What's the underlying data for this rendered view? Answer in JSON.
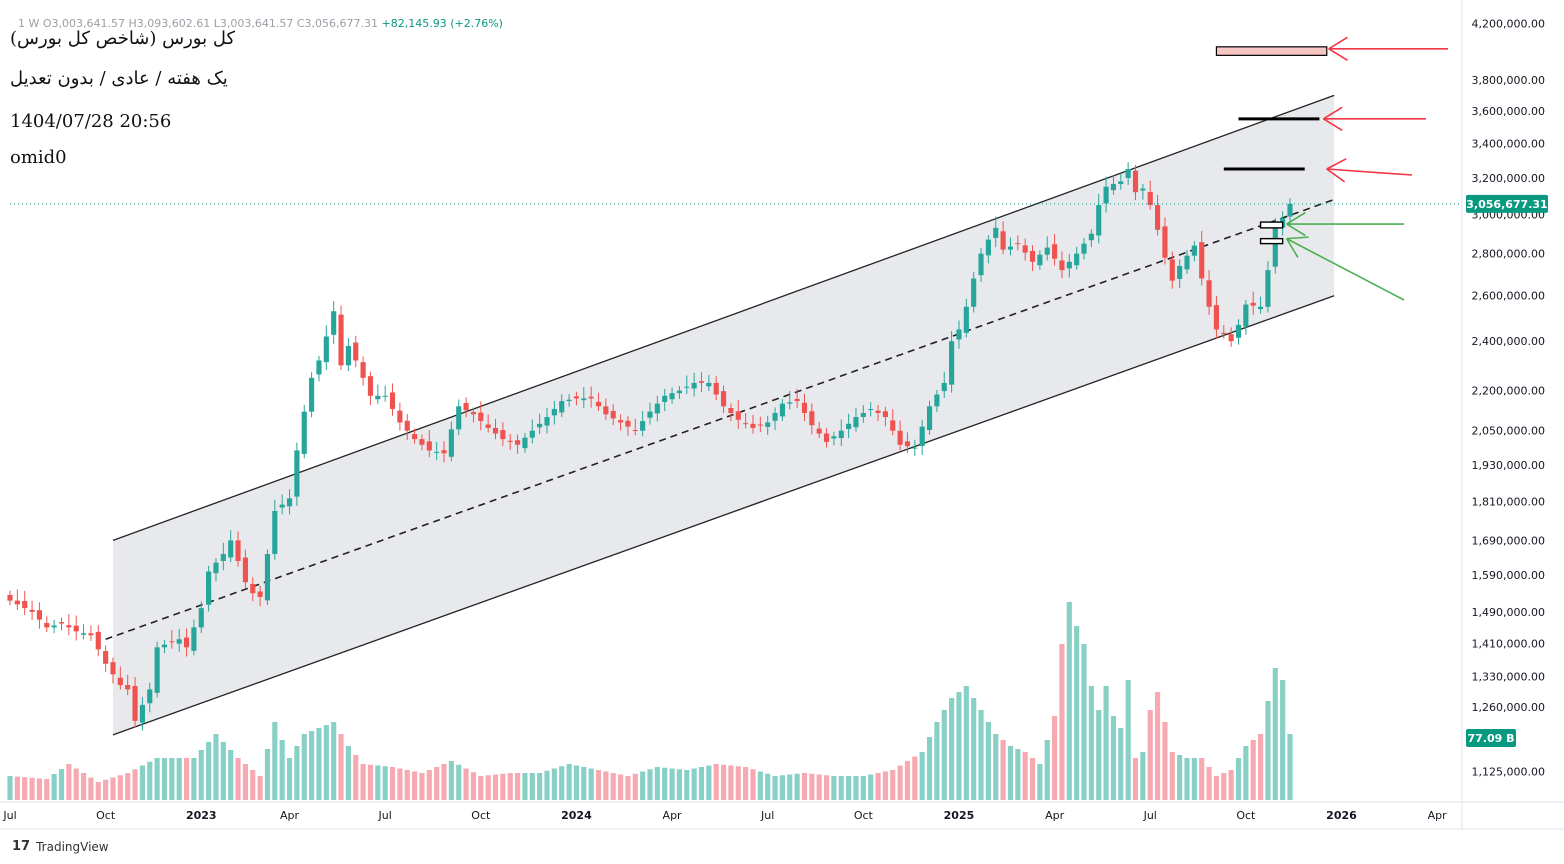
{
  "header": {
    "ohlc_text": "1  W  O3,003,641.57  H3,093,602.61  L3,003,641.57  C3,056,677.31",
    "change_text": "+82,145.93 (+2.76%)",
    "title": "کل بورس (شاخص کل بورس)",
    "subtitle": "یک هفته / عادی / بدون تعدیل",
    "datetime": "1404/07/28 20:56",
    "author": "omid0"
  },
  "footer": {
    "brand": "TradingView",
    "logo": "tradingview-logo"
  },
  "colors": {
    "up": "#089981",
    "down": "#f23645",
    "up_light": "#26a69a",
    "down_light": "#ef5350",
    "vol_up": "#88d0c5",
    "vol_down": "#f7a9b1",
    "channel_fill": "#e6e7eb",
    "axis_text": "#131722",
    "price_label_bg": "#089981",
    "arrow_red": "#f23645",
    "arrow_green": "#4caf50",
    "box_pink": "#f8c5c5"
  },
  "chart_data": {
    "type": "candlestick",
    "scale": "log",
    "ylim": [
      1070000,
      4300000
    ],
    "y_ticks": [
      1125000,
      1260000,
      1330000,
      1410000,
      1490000,
      1590000,
      1690000,
      1810000,
      1930000,
      2050000,
      2200000,
      2400000,
      2600000,
      2800000,
      3000000,
      3200000,
      3400000,
      3600000,
      3800000,
      4200000
    ],
    "y_tick_labels": [
      "1,125,000.00",
      "1,260,000.00",
      "1,330,000.00",
      "1,410,000.00",
      "1,490,000.00",
      "1,590,000.00",
      "1,690,000.00",
      "1,810,000.00",
      "1,930,000.00",
      "2,050,000.00",
      "2,200,000.00",
      "2,400,000.00",
      "2,600,000.00",
      "2,800,000.00",
      "3,000,000.00",
      "3,200,000.00",
      "3,400,000.00",
      "3,600,000.00",
      "3,800,000.00",
      "4,200,000.00"
    ],
    "x_ticks": [
      {
        "label": "Jul",
        "week": 0,
        "bold": false
      },
      {
        "label": "Oct",
        "week": 13,
        "bold": false
      },
      {
        "label": "2023",
        "week": 26,
        "bold": true
      },
      {
        "label": "Apr",
        "week": 38,
        "bold": false
      },
      {
        "label": "Jul",
        "week": 51,
        "bold": false
      },
      {
        "label": "Oct",
        "week": 64,
        "bold": false
      },
      {
        "label": "2024",
        "week": 77,
        "bold": true
      },
      {
        "label": "Apr",
        "week": 90,
        "bold": false
      },
      {
        "label": "Jul",
        "week": 103,
        "bold": false
      },
      {
        "label": "Oct",
        "week": 116,
        "bold": false
      },
      {
        "label": "2025",
        "week": 129,
        "bold": true
      },
      {
        "label": "Apr",
        "week": 142,
        "bold": false
      },
      {
        "label": "Jul",
        "week": 155,
        "bold": false
      },
      {
        "label": "Oct",
        "week": 168,
        "bold": false
      },
      {
        "label": "2026",
        "week": 181,
        "bold": true
      },
      {
        "label": "Apr",
        "week": 194,
        "bold": false
      }
    ],
    "week_range": [
      0,
      196
    ],
    "close_anchors": [
      [
        0,
        1520000
      ],
      [
        3,
        1490000
      ],
      [
        5,
        1450000
      ],
      [
        7,
        1460000
      ],
      [
        9,
        1440000
      ],
      [
        11,
        1430000
      ],
      [
        13,
        1360000
      ],
      [
        15,
        1310000
      ],
      [
        16,
        1300000
      ],
      [
        17,
        1230000
      ],
      [
        19,
        1300000
      ],
      [
        20,
        1400000
      ],
      [
        23,
        1420000
      ],
      [
        24,
        1400000
      ],
      [
        25,
        1450000
      ],
      [
        26,
        1500000
      ],
      [
        27,
        1600000
      ],
      [
        29,
        1650000
      ],
      [
        30,
        1690000
      ],
      [
        32,
        1570000
      ],
      [
        33,
        1540000
      ],
      [
        34,
        1530000
      ],
      [
        35,
        1650000
      ],
      [
        36,
        1780000
      ],
      [
        38,
        1820000
      ],
      [
        39,
        1980000
      ],
      [
        40,
        2120000
      ],
      [
        41,
        2250000
      ],
      [
        42,
        2320000
      ],
      [
        43,
        2420000
      ],
      [
        44,
        2530000
      ],
      [
        45,
        2300000
      ],
      [
        46,
        2380000
      ],
      [
        47,
        2320000
      ],
      [
        49,
        2180000
      ],
      [
        51,
        2180000
      ],
      [
        53,
        2080000
      ],
      [
        55,
        2020000
      ],
      [
        57,
        1980000
      ],
      [
        59,
        1970000
      ],
      [
        61,
        2140000
      ],
      [
        63,
        2110000
      ],
      [
        65,
        2060000
      ],
      [
        67,
        2020000
      ],
      [
        69,
        2000000
      ],
      [
        71,
        2050000
      ],
      [
        73,
        2100000
      ],
      [
        75,
        2160000
      ],
      [
        77,
        2170000
      ],
      [
        79,
        2170000
      ],
      [
        81,
        2110000
      ],
      [
        83,
        2080000
      ],
      [
        85,
        2050000
      ],
      [
        87,
        2120000
      ],
      [
        89,
        2180000
      ],
      [
        91,
        2200000
      ],
      [
        93,
        2230000
      ],
      [
        95,
        2230000
      ],
      [
        97,
        2140000
      ],
      [
        99,
        2090000
      ],
      [
        101,
        2060000
      ],
      [
        103,
        2080000
      ],
      [
        105,
        2150000
      ],
      [
        107,
        2160000
      ],
      [
        109,
        2070000
      ],
      [
        111,
        2010000
      ],
      [
        113,
        2050000
      ],
      [
        115,
        2100000
      ],
      [
        117,
        2130000
      ],
      [
        119,
        2100000
      ],
      [
        121,
        2000000
      ],
      [
        123,
        1990000
      ],
      [
        125,
        2140000
      ],
      [
        127,
        2230000
      ],
      [
        128,
        2400000
      ],
      [
        129,
        2450000
      ],
      [
        130,
        2550000
      ],
      [
        131,
        2680000
      ],
      [
        132,
        2800000
      ],
      [
        133,
        2870000
      ],
      [
        134,
        2930000
      ],
      [
        135,
        2820000
      ],
      [
        137,
        2850000
      ],
      [
        139,
        2760000
      ],
      [
        141,
        2830000
      ],
      [
        143,
        2720000
      ],
      [
        145,
        2800000
      ],
      [
        147,
        2900000
      ],
      [
        148,
        3050000
      ],
      [
        149,
        3150000
      ],
      [
        151,
        3180000
      ],
      [
        152,
        3250000
      ],
      [
        153,
        3120000
      ],
      [
        154,
        3140000
      ],
      [
        155,
        3050000
      ],
      [
        156,
        2920000
      ],
      [
        157,
        2780000
      ],
      [
        158,
        2670000
      ],
      [
        159,
        2740000
      ],
      [
        161,
        2840000
      ],
      [
        162,
        2680000
      ],
      [
        163,
        2550000
      ],
      [
        164,
        2450000
      ],
      [
        165,
        2430000
      ],
      [
        166,
        2400000
      ],
      [
        167,
        2470000
      ],
      [
        168,
        2560000
      ],
      [
        170,
        2550000
      ],
      [
        171,
        2720000
      ],
      [
        172,
        2940000
      ],
      [
        173,
        2980000
      ],
      [
        174,
        3056677
      ]
    ],
    "volume_anchors": [
      [
        0,
        8
      ],
      [
        5,
        7
      ],
      [
        8,
        12
      ],
      [
        12,
        6
      ],
      [
        16,
        9
      ],
      [
        20,
        14
      ],
      [
        25,
        14
      ],
      [
        28,
        22
      ],
      [
        31,
        14
      ],
      [
        34,
        8
      ],
      [
        36,
        26
      ],
      [
        38,
        14
      ],
      [
        40,
        22
      ],
      [
        42,
        24
      ],
      [
        44,
        26
      ],
      [
        46,
        18
      ],
      [
        48,
        12
      ],
      [
        52,
        11
      ],
      [
        56,
        9
      ],
      [
        60,
        13
      ],
      [
        64,
        8
      ],
      [
        68,
        9
      ],
      [
        72,
        9
      ],
      [
        76,
        12
      ],
      [
        80,
        10
      ],
      [
        84,
        8
      ],
      [
        88,
        11
      ],
      [
        92,
        10
      ],
      [
        96,
        12
      ],
      [
        100,
        11
      ],
      [
        104,
        8
      ],
      [
        108,
        9
      ],
      [
        112,
        8
      ],
      [
        116,
        8
      ],
      [
        120,
        10
      ],
      [
        124,
        16
      ],
      [
        126,
        26
      ],
      [
        128,
        34
      ],
      [
        130,
        38
      ],
      [
        132,
        30
      ],
      [
        134,
        22
      ],
      [
        136,
        18
      ],
      [
        138,
        16
      ],
      [
        140,
        12
      ],
      [
        142,
        28
      ],
      [
        143,
        52
      ],
      [
        144,
        66
      ],
      [
        145,
        58
      ],
      [
        146,
        52
      ],
      [
        147,
        38
      ],
      [
        148,
        30
      ],
      [
        149,
        38
      ],
      [
        150,
        28
      ],
      [
        151,
        24
      ],
      [
        152,
        40
      ],
      [
        153,
        14
      ],
      [
        154,
        16
      ],
      [
        155,
        30
      ],
      [
        156,
        36
      ],
      [
        158,
        16
      ],
      [
        160,
        14
      ],
      [
        162,
        14
      ],
      [
        164,
        8
      ],
      [
        166,
        10
      ],
      [
        168,
        18
      ],
      [
        170,
        22
      ],
      [
        172,
        44
      ],
      [
        173,
        40
      ],
      [
        174,
        22
      ]
    ],
    "volume_label": "77.09 B",
    "last_price": 3056677.31,
    "last_price_label": "3,056,677.31",
    "channel": {
      "upper": [
        [
          14,
          1690000
        ],
        [
          180,
          3700000
        ]
      ],
      "lower": [
        [
          14,
          1200000
        ],
        [
          180,
          2600000
        ]
      ],
      "mid": [
        [
          13,
          1420000
        ],
        [
          180,
          3080000
        ]
      ]
    },
    "levels": [
      {
        "name": "resistance-1",
        "price": 3250000,
        "from": 165,
        "to": 176
      },
      {
        "name": "resistance-2",
        "price": 3550000,
        "from": 167,
        "to": 178
      }
    ],
    "target_box": {
      "price_low": 3970000,
      "price_high": 4030000,
      "from": 164,
      "to": 179
    },
    "support_boxes": [
      {
        "price_low": 2930000,
        "price_high": 2960000,
        "from": 170,
        "to": 173
      },
      {
        "price_low": 2850000,
        "price_high": 2875000,
        "from": 170,
        "to": 173
      }
    ]
  }
}
